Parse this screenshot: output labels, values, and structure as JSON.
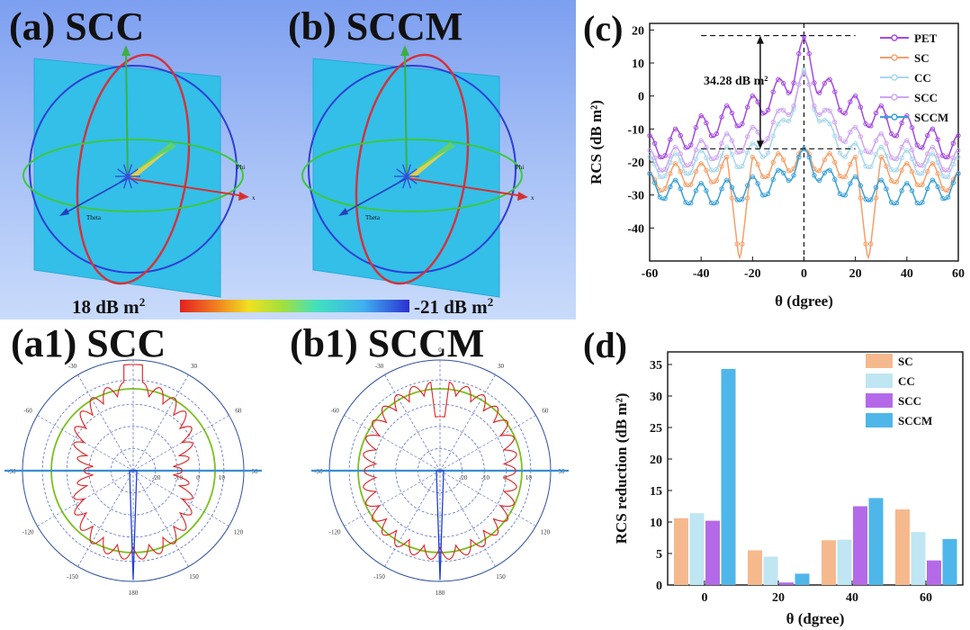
{
  "panels": {
    "a": "(a) SCC",
    "b": "(b) SCCM",
    "a1": "(a1) SCC",
    "b1": "(b1) SCCM",
    "c": "(c)",
    "d": "(d)"
  },
  "pattern3d": {
    "axis_labels": {
      "x": "x",
      "phi": "Phi",
      "theta": "Theta",
      "z": "z"
    },
    "colorbar": {
      "max_label": "18 dB m",
      "min_label": "-21 dB m",
      "sup": "2"
    },
    "colors": {
      "background": "#8fb0f0",
      "plane": "#33bfe8",
      "sphere_blue": "#2d3fd6",
      "sphere_red": "#d6303a",
      "equator_green": "#3cc83c"
    }
  },
  "polar": {
    "angle_labels": [
      "0",
      "30",
      "60",
      "90",
      "120",
      "150",
      "180",
      "-150",
      "-120",
      "-90",
      "-60",
      "-30"
    ],
    "radial_labels": [
      "10",
      "0",
      "-10",
      "-20"
    ],
    "colors": {
      "pattern": "#e02020",
      "ring": "#7cc020",
      "axis": "#3a8fd0",
      "grid": "#5a6fc0"
    }
  },
  "chart_data": [
    {
      "type": "line",
      "title": "",
      "xlabel": "θ (dgree)",
      "ylabel": "RCS (dB m²)",
      "xlim": [
        -60,
        60
      ],
      "ylim": [
        -50,
        22
      ],
      "xticks": [
        -60,
        -40,
        -20,
        0,
        20,
        40,
        60
      ],
      "yticks": [
        -40,
        -30,
        -20,
        -10,
        0,
        10,
        20
      ],
      "legend_position": "top-right",
      "annotation": "34.28 dB m²",
      "series": [
        {
          "name": "PET",
          "color": "#a449e0",
          "x": [
            -60,
            -50,
            -40,
            -30,
            -20,
            -10,
            -5,
            0,
            5,
            10,
            20,
            30,
            40,
            50,
            60
          ],
          "values": [
            -14,
            -12,
            -8,
            -5,
            -2,
            3,
            7,
            18,
            7,
            3,
            -2,
            -5,
            -8,
            -12,
            -14
          ]
        },
        {
          "name": "SC",
          "color": "#f4a06a",
          "x": [
            -60,
            -50,
            -40,
            -30,
            -25,
            -20,
            -10,
            0,
            10,
            20,
            25,
            30,
            40,
            50,
            60
          ],
          "values": [
            -25,
            -22,
            -22,
            -20,
            -45,
            -20,
            -19,
            -16,
            -19,
            -20,
            -45,
            -20,
            -22,
            -22,
            -25
          ]
        },
        {
          "name": "CC",
          "color": "#a8d8ec",
          "x": [
            -60,
            -50,
            -40,
            -30,
            -20,
            -10,
            0,
            10,
            20,
            30,
            40,
            50,
            60
          ],
          "values": [
            -20,
            -19,
            -18,
            -17,
            -16,
            -10,
            8,
            -10,
            -16,
            -17,
            -18,
            -19,
            -20
          ]
        },
        {
          "name": "SCC",
          "color": "#cfa6f0",
          "x": [
            -60,
            -50,
            -40,
            -30,
            -20,
            -10,
            0,
            10,
            20,
            30,
            40,
            50,
            60
          ],
          "values": [
            -18,
            -17,
            -15,
            -13,
            -11,
            -6,
            7,
            -6,
            -11,
            -13,
            -15,
            -17,
            -18
          ]
        },
        {
          "name": "SCCM",
          "color": "#3aa0d8",
          "x": [
            -60,
            -50,
            -40,
            -30,
            -20,
            -10,
            0,
            10,
            20,
            30,
            40,
            50,
            60
          ],
          "values": [
            -25,
            -27,
            -28,
            -27,
            -26,
            -24,
            -16,
            -24,
            -26,
            -27,
            -28,
            -27,
            -25
          ]
        }
      ]
    },
    {
      "type": "bar",
      "title": "",
      "xlabel": "θ (dgree)",
      "ylabel": "RCS reduction (dB m²)",
      "categories": [
        "0",
        "20",
        "40",
        "60"
      ],
      "ylim": [
        0,
        37
      ],
      "yticks": [
        0,
        5,
        10,
        15,
        20,
        25,
        30,
        35
      ],
      "legend_position": "top-right",
      "series": [
        {
          "name": "SC",
          "color": "#f6b98e",
          "values": [
            10.6,
            5.5,
            7.1,
            12.0
          ]
        },
        {
          "name": "CC",
          "color": "#bfe6f2",
          "values": [
            11.4,
            4.5,
            7.2,
            8.4
          ]
        },
        {
          "name": "SCC",
          "color": "#b46ae8",
          "values": [
            10.2,
            0.4,
            12.5,
            3.9
          ]
        },
        {
          "name": "SCCM",
          "color": "#4fb6ea",
          "values": [
            34.3,
            1.8,
            13.8,
            7.3
          ]
        }
      ]
    }
  ]
}
